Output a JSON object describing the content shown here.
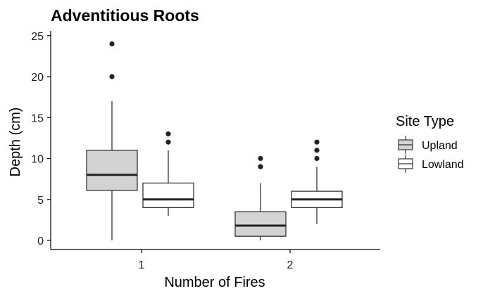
{
  "chart_data": {
    "type": "boxplot",
    "title": "Adventitious Roots",
    "xlabel": "Number of Fires",
    "ylabel": "Depth (cm)",
    "categories": [
      "1",
      "2"
    ],
    "ylim": [
      0,
      25
    ],
    "yticks": [
      0,
      5,
      10,
      15,
      20,
      25
    ],
    "grid": false,
    "legend": {
      "title": "Site Type",
      "placement": "right"
    },
    "series": [
      {
        "name": "Upland",
        "fill": "#d3d3d3",
        "boxes": [
          {
            "category": "1",
            "min": 0,
            "q1": 6.1,
            "median": 8,
            "q3": 11,
            "max": 17,
            "outliers": [
              20,
              24
            ]
          },
          {
            "category": "2",
            "min": 0,
            "q1": 0.5,
            "median": 1.8,
            "q3": 3.5,
            "max": 7,
            "outliers": [
              9,
              10
            ]
          }
        ]
      },
      {
        "name": "Lowland",
        "fill": "#ffffff",
        "boxes": [
          {
            "category": "1",
            "min": 3,
            "q1": 4,
            "median": 5,
            "q3": 7,
            "max": 11,
            "outliers": [
              12,
              13
            ]
          },
          {
            "category": "2",
            "min": 2,
            "q1": 4,
            "median": 5,
            "q3": 6,
            "max": 9,
            "outliers": [
              10,
              11,
              12
            ]
          }
        ]
      }
    ]
  }
}
